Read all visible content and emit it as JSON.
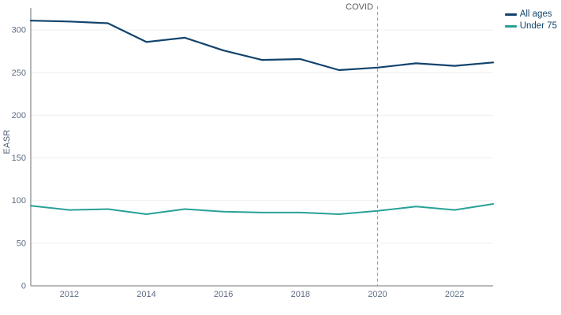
{
  "chart_data": {
    "type": "line",
    "title": "",
    "xlabel": "",
    "ylabel": "EASR",
    "x": [
      2011,
      2012,
      2013,
      2014,
      2015,
      2016,
      2017,
      2018,
      2019,
      2020,
      2021,
      2022,
      2023
    ],
    "xlim": [
      2011,
      2023
    ],
    "ylim": [
      0,
      326
    ],
    "xticks": [
      2012,
      2014,
      2016,
      2018,
      2020,
      2022
    ],
    "yticks": [
      0,
      50,
      100,
      150,
      200,
      250,
      300
    ],
    "grid": "horizontal-light",
    "legend_position": "top-right",
    "series": [
      {
        "name": "All ages",
        "color": "#12436D",
        "values": [
          311,
          310,
          308,
          286,
          291,
          276,
          265,
          266,
          253,
          256,
          261,
          258,
          262
        ]
      },
      {
        "name": "Under 75",
        "color": "#28A197",
        "values": [
          94,
          89,
          90,
          84,
          90,
          87,
          86,
          86,
          84,
          88,
          93,
          89,
          96
        ]
      }
    ],
    "annotations": [
      {
        "text": "COVID",
        "x": 2020,
        "style": "dashed-vertical-line"
      }
    ],
    "colors": {
      "axis": "#a3a3a3",
      "grid": "#efefef",
      "tick_text": "#5f6c84",
      "legend_text": "#12436D",
      "annotation_line": "#9b9b9b",
      "annotation_text": "#595959",
      "background": "#ffffff"
    }
  }
}
